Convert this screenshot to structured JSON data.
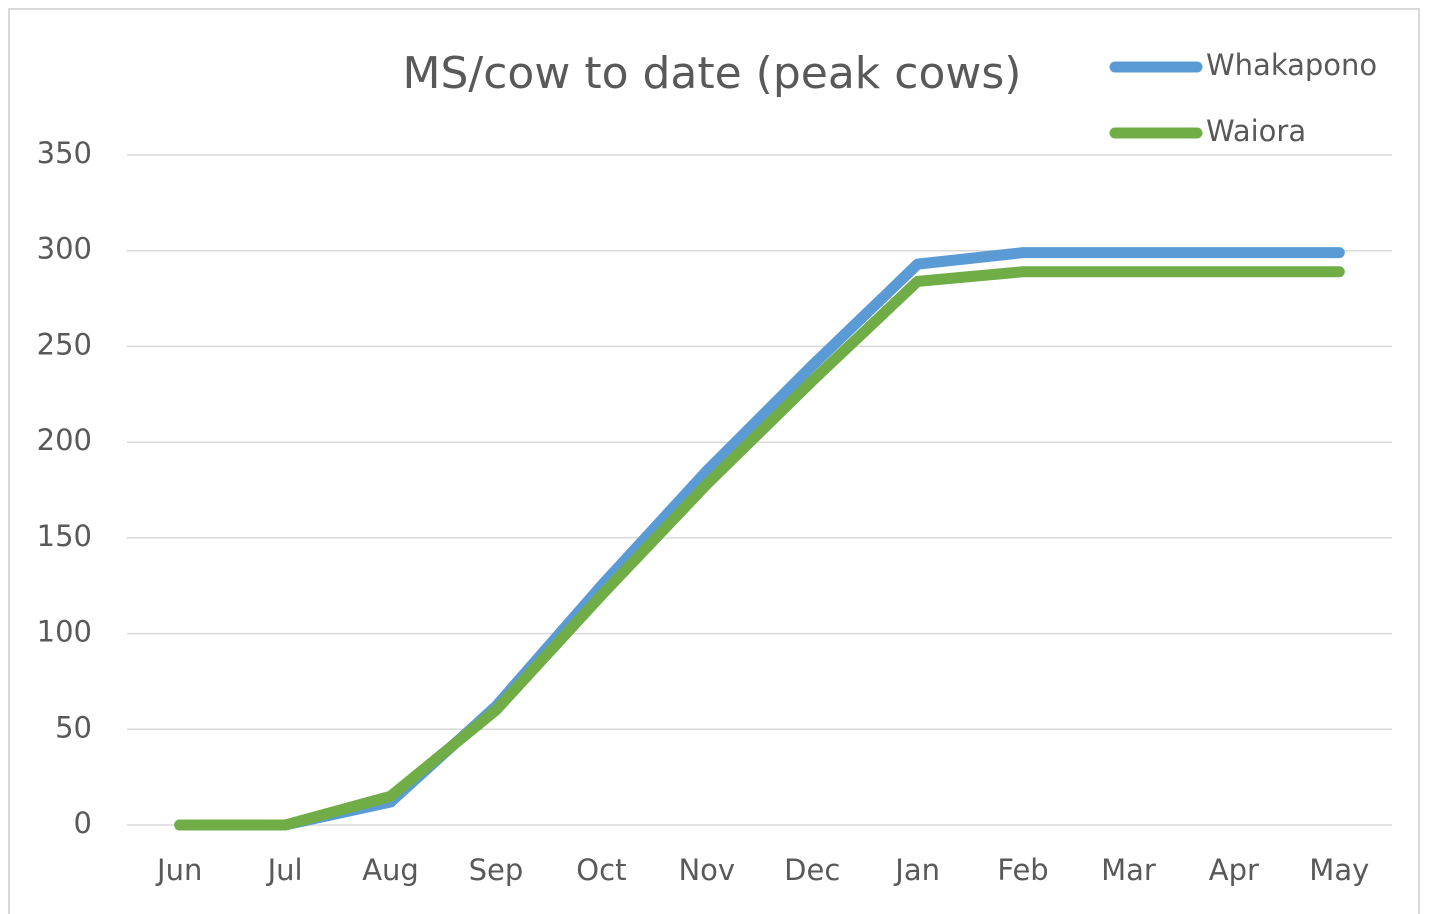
{
  "chart_data": {
    "type": "line",
    "title": "MS/cow to date (peak cows)",
    "categories": [
      "Jun",
      "Jul",
      "Aug",
      "Sep",
      "Oct",
      "Nov",
      "Dec",
      "Jan",
      "Feb",
      "Mar",
      "Apr",
      "May"
    ],
    "series": [
      {
        "name": "Whakapono",
        "color": "#5b9bd5",
        "values": [
          0,
          0,
          12,
          62,
          125,
          185,
          240,
          293,
          299,
          299,
          299,
          299
        ]
      },
      {
        "name": "Waiora",
        "color": "#70ad47",
        "values": [
          0,
          0,
          15,
          60,
          120,
          178,
          232,
          284,
          289,
          289,
          289,
          289
        ]
      }
    ],
    "ylim": [
      0,
      350
    ],
    "yticks": [
      0,
      50,
      100,
      150,
      200,
      250,
      300,
      350
    ],
    "grid": true,
    "legend": "top-right"
  }
}
